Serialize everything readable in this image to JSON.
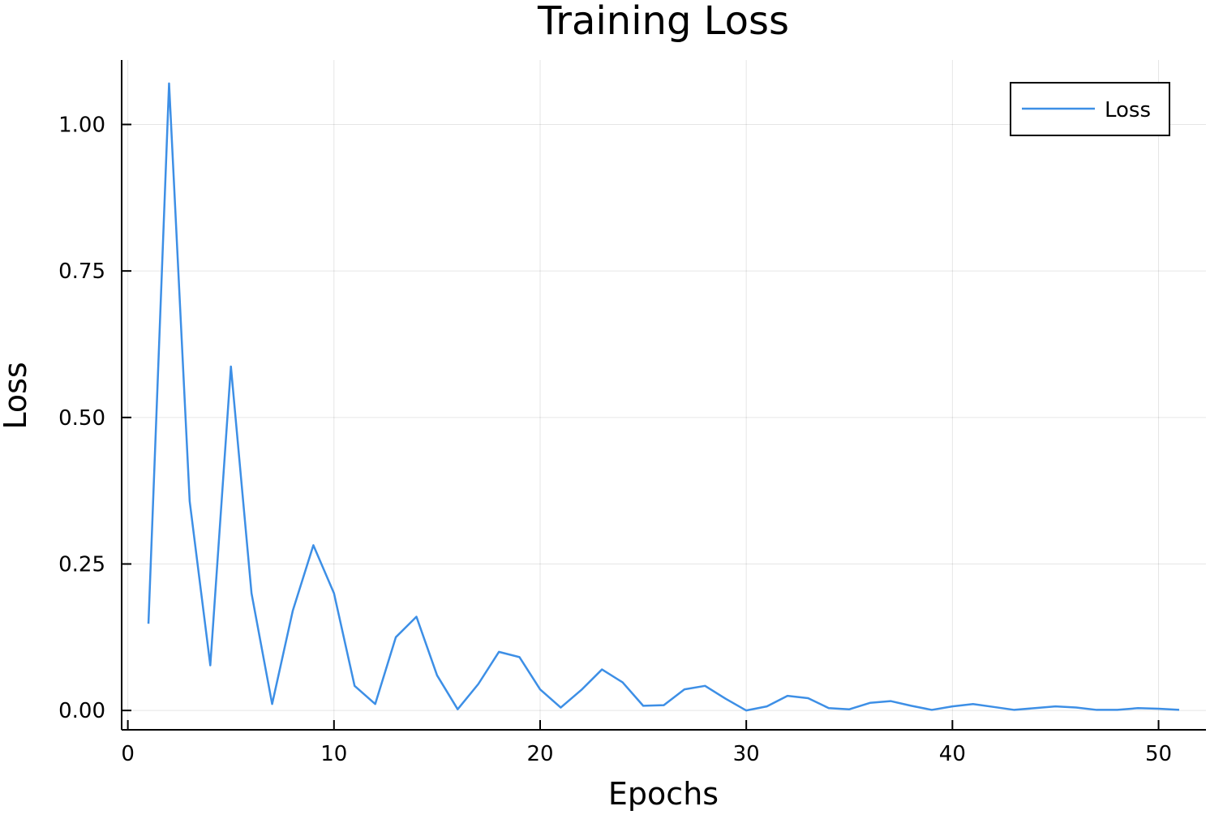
{
  "chart_data": {
    "type": "line",
    "title": "Training Loss",
    "xlabel": "Epochs",
    "ylabel": "Loss",
    "xlim": [
      -0.3,
      52.3
    ],
    "ylim": [
      -0.033,
      1.11
    ],
    "xticks": [
      0,
      10,
      20,
      30,
      40,
      50
    ],
    "xtick_labels": [
      "0",
      "10",
      "20",
      "30",
      "40",
      "50"
    ],
    "yticks": [
      0,
      0.25,
      0.5,
      0.75,
      1.0
    ],
    "ytick_labels": [
      "0.00",
      "0.25",
      "0.50",
      "0.75",
      "1.00"
    ],
    "grid": true,
    "legend_position": "top-right",
    "series": [
      {
        "name": "Loss",
        "color": "#3d8fe6",
        "x": [
          1,
          2,
          3,
          4,
          5,
          6,
          7,
          8,
          9,
          10,
          11,
          12,
          13,
          14,
          15,
          16,
          17,
          18,
          19,
          20,
          21,
          22,
          23,
          24,
          25,
          26,
          27,
          28,
          29,
          30,
          31,
          32,
          33,
          34,
          35,
          36,
          37,
          38,
          39,
          40,
          41,
          42,
          43,
          44,
          45,
          46,
          47,
          48,
          49,
          50,
          51
        ],
        "y": [
          0.148,
          1.07,
          0.357,
          0.077,
          0.587,
          0.2,
          0.011,
          0.17,
          0.282,
          0.2,
          0.042,
          0.011,
          0.125,
          0.16,
          0.06,
          0.002,
          0.045,
          0.1,
          0.091,
          0.036,
          0.005,
          0.035,
          0.07,
          0.048,
          0.008,
          0.009,
          0.036,
          0.042,
          0.02,
          0.0,
          0.007,
          0.025,
          0.021,
          0.004,
          0.002,
          0.013,
          0.016,
          0.008,
          0.001,
          0.007,
          0.011,
          0.006,
          0.001,
          0.004,
          0.007,
          0.005,
          0.001,
          0.001,
          0.004,
          0.003,
          0.001
        ]
      }
    ]
  }
}
